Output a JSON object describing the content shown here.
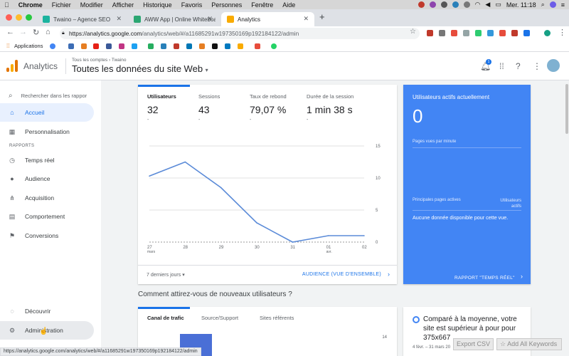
{
  "menubar": {
    "apple": "",
    "app": "Chrome",
    "items": [
      "Fichier",
      "Modifier",
      "Afficher",
      "Historique",
      "Favoris",
      "Personnes",
      "Fenêtre",
      "Aide"
    ],
    "clock": "Mer. 11:18"
  },
  "tabs": [
    {
      "title": "Twaino – Agence SEO",
      "favicon_color": "#1bb39f"
    },
    {
      "title": "AWW App | Online Whiteboard",
      "favicon_color": "#2ba672"
    },
    {
      "title": "Analytics",
      "favicon_color": "#f9ab00",
      "active": true
    }
  ],
  "address": {
    "host": "https://analytics.google.com",
    "path": "/analytics/web/#/a11685291w197350169p192184122/admin"
  },
  "bookmarks": {
    "apps_label": "Applications"
  },
  "ga": {
    "product": "Analytics",
    "breadcrumb": "Tous les comptes › Twaino",
    "property": "Toutes les données du site Web",
    "property_caret": "▾",
    "notif_count": "1"
  },
  "sidebar": {
    "search_placeholder": "Rechercher dans les rappor",
    "reports_label": "RAPPORTS",
    "items": [
      {
        "label": "Accueil",
        "icon": "home-icon",
        "active": true
      },
      {
        "label": "Personnalisation",
        "icon": "dashboard-icon"
      },
      {
        "label": "Temps réel",
        "icon": "clock-icon"
      },
      {
        "label": "Audience",
        "icon": "person-icon"
      },
      {
        "label": "Acquisition",
        "icon": "acquisition-icon"
      },
      {
        "label": "Comportement",
        "icon": "behavior-icon"
      },
      {
        "label": "Conversions",
        "icon": "flag-icon"
      },
      {
        "label": "Découvrir",
        "icon": "lightbulb-icon"
      },
      {
        "label": "Administration",
        "icon": "gear-icon"
      }
    ]
  },
  "overview": {
    "metrics": [
      {
        "label": "Utilisateurs",
        "value": "32",
        "delta": "-"
      },
      {
        "label": "Sessions",
        "value": "43",
        "delta": "-"
      },
      {
        "label": "Taux de rebond",
        "value": "79,07 %",
        "delta": "-"
      },
      {
        "label": "Durée de la session",
        "value": "1 min 38 s",
        "delta": "-"
      }
    ],
    "period": "7 derniers jours ▾",
    "link": "AUDIENCE (VUE D'ENSEMBLE)"
  },
  "chart_data": {
    "type": "line",
    "x": [
      "27 mars",
      "28",
      "29",
      "30",
      "31",
      "01 avr.",
      "02"
    ],
    "series": [
      {
        "values": [
          10.3,
          12.5,
          8.5,
          3,
          0,
          1,
          1
        ]
      }
    ],
    "y_ticks": [
      "15",
      "10",
      "5",
      "0"
    ],
    "ylim": [
      0,
      15
    ],
    "color": "#5b8bd8"
  },
  "realtime": {
    "title": "Utilisateurs actifs actuellement",
    "value": "0",
    "per_minute": "Pages vues par minute",
    "pages_col": "Principales pages actives",
    "users_col": "Utilisateurs actifs",
    "empty": "Aucune donnée disponible pour cette vue.",
    "link": "RAPPORT \"TEMPS RÉEL\""
  },
  "acquisition": {
    "heading": "Comment attirez-vous de nouveaux utilisateurs ?",
    "tabs": [
      "Canal de trafic",
      "Source/Support",
      "Sites référents"
    ],
    "axis_top": "14"
  },
  "comparison": {
    "text": "Comparé à la moyenne, votre site est supérieur à pour pour 375x667",
    "dates": "4 févr. – 31 mars 20"
  },
  "overlay": {
    "export": "Export CSV",
    "add_keywords": "☆ Add All Keywords"
  },
  "status_url": "https://analytics.google.com/analytics/web/#/a11685291w197350169p192184122/admin",
  "colors": {
    "accent": "#1a73e8",
    "realtime_bg": "#4285f4"
  }
}
